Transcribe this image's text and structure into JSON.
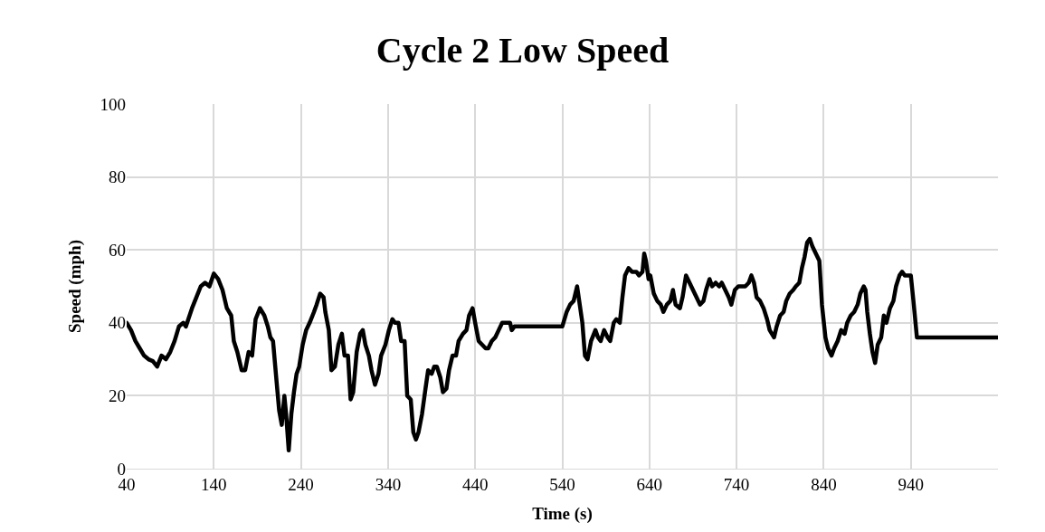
{
  "chart_data": {
    "type": "line",
    "title": "Cycle 2 Low Speed",
    "xlabel": "Time (s)",
    "ylabel": "Speed (mph)",
    "xlim": [
      40,
      1040
    ],
    "xticks": [
      40,
      140,
      240,
      340,
      440,
      540,
      640,
      740,
      840,
      940
    ],
    "ylim": [
      0,
      100
    ],
    "yticks": [
      0,
      20,
      40,
      60,
      80,
      100
    ],
    "grid": true,
    "marker": "none",
    "line_style": "solid",
    "series": [
      {
        "color": "#000000",
        "x": [
          40,
          45,
          50,
          55,
          60,
          65,
          70,
          75,
          80,
          85,
          90,
          95,
          100,
          105,
          108,
          115,
          120,
          125,
          130,
          135,
          140,
          145,
          150,
          155,
          160,
          163,
          167,
          172,
          176,
          180,
          184,
          188,
          193,
          198,
          202,
          205,
          208,
          212,
          215,
          218,
          221,
          223,
          226,
          229,
          232,
          235,
          238,
          242,
          246,
          250,
          255,
          258,
          262,
          266,
          268,
          272,
          275,
          279,
          283,
          287,
          290,
          294,
          297,
          300,
          304,
          308,
          311,
          314,
          318,
          321,
          325,
          329,
          332,
          337,
          341,
          345,
          348,
          352,
          355,
          359,
          362,
          366,
          369,
          372,
          375,
          379,
          383,
          386,
          390,
          393,
          396,
          400,
          403,
          407,
          410,
          414,
          418,
          421,
          426,
          430,
          433,
          437,
          440,
          444,
          448,
          452,
          455,
          459,
          463,
          467,
          471,
          475,
          480,
          482,
          485,
          540,
          545,
          549,
          553,
          557,
          560,
          563,
          566,
          569,
          573,
          578,
          581,
          584,
          588,
          592,
          595,
          599,
          602,
          606,
          609,
          612,
          616,
          620,
          625,
          628,
          632,
          634,
          636,
          639,
          641,
          645,
          649,
          653,
          656,
          660,
          664,
          667,
          670,
          675,
          678,
          682,
          686,
          690,
          694,
          698,
          702,
          705,
          709,
          712,
          716,
          720,
          723,
          727,
          731,
          734,
          738,
          742,
          746,
          750,
          754,
          757,
          760,
          763,
          767,
          771,
          775,
          778,
          783,
          786,
          790,
          794,
          797,
          801,
          805,
          808,
          812,
          815,
          818,
          821,
          824,
          827,
          831,
          835,
          838,
          842,
          845,
          849,
          852,
          856,
          860,
          864,
          867,
          871,
          875,
          879,
          882,
          886,
          888,
          890,
          893,
          896,
          899,
          902,
          906,
          909,
          912,
          916,
          920,
          923,
          927,
          930,
          933,
          940,
          943,
          947,
          1040
        ],
        "values": [
          40,
          38,
          35,
          33,
          31,
          30,
          29.5,
          28,
          31,
          30,
          32,
          35,
          39,
          40,
          39,
          44,
          47,
          50,
          51,
          50,
          53.5,
          52,
          49,
          44,
          42,
          35,
          32,
          27,
          27,
          32,
          31,
          41,
          44,
          42,
          39,
          36,
          35,
          24,
          16,
          12,
          20,
          15,
          5,
          15,
          21,
          26,
          28,
          34,
          38,
          40,
          43,
          45,
          48,
          47,
          43,
          38,
          27,
          28,
          34,
          37,
          31,
          31,
          19,
          21,
          32,
          37,
          38,
          34,
          31,
          27,
          23,
          26,
          31,
          34,
          38,
          41,
          40,
          40,
          35,
          35,
          20,
          19,
          10,
          8,
          10,
          15,
          22,
          27,
          26,
          28,
          28,
          25,
          21,
          22,
          27,
          31,
          31,
          35,
          37,
          38,
          42,
          44,
          40,
          35,
          34,
          33,
          33,
          35,
          36,
          38,
          40,
          40,
          40,
          38,
          39,
          39,
          43,
          45,
          46,
          50,
          45,
          40,
          31,
          30,
          35,
          38,
          36,
          35,
          38,
          36,
          35,
          40,
          41,
          40,
          47,
          53,
          55,
          54,
          54,
          53,
          54,
          59,
          57,
          52,
          53,
          48,
          46,
          45,
          43,
          45,
          46,
          49,
          45,
          44,
          47,
          53,
          51,
          49,
          47,
          45,
          46,
          49,
          52,
          50,
          51,
          50,
          51,
          49,
          47,
          45,
          49,
          50,
          50,
          50,
          51,
          53,
          51,
          47,
          46,
          44,
          41,
          38,
          36,
          39,
          42,
          43,
          46,
          48,
          49,
          50,
          51,
          55,
          58,
          62,
          63,
          61,
          59,
          57,
          45,
          36,
          33,
          31,
          33,
          35,
          38,
          37,
          40,
          42,
          43,
          45,
          48,
          50,
          49,
          43,
          37,
          32,
          29,
          34,
          36,
          42,
          40,
          44,
          46,
          50,
          53,
          54,
          53,
          53,
          46,
          36,
          36
        ]
      }
    ]
  }
}
